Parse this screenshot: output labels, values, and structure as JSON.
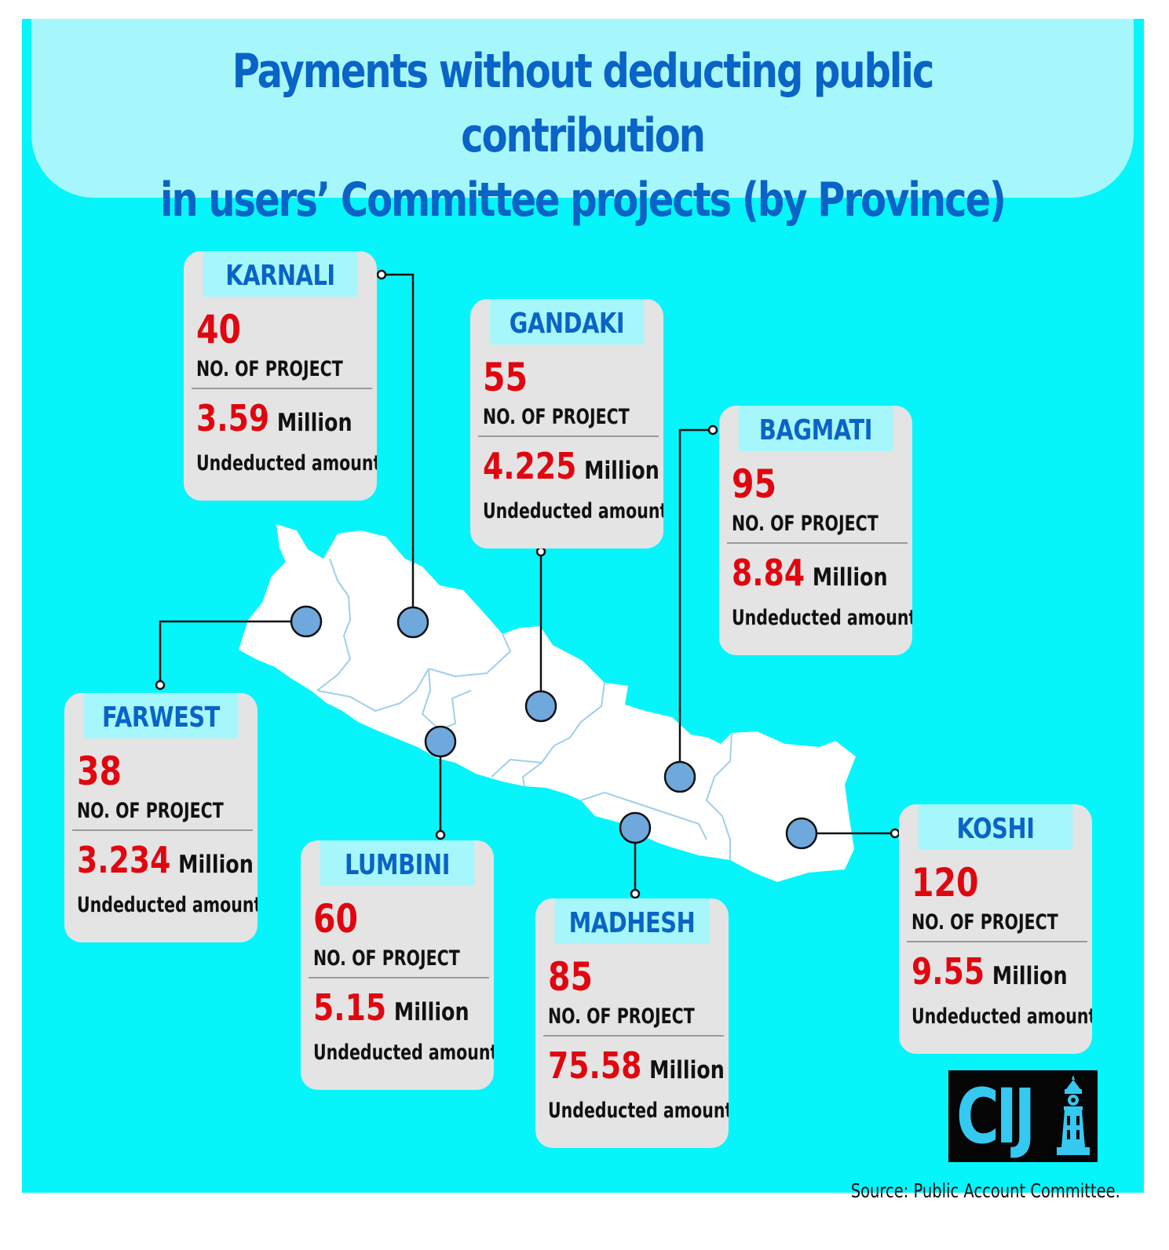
{
  "title": "Payments without deducting public contribution\nin users’ Committee projects (by Province)",
  "labels": {
    "count_label": "NO. OF PROJECT",
    "unit": "Million",
    "amount_label": "Undeducted amount"
  },
  "colors": {
    "background": "#05f5fb",
    "title_panel": "#a6f7fb",
    "title_text": "#0a63c6",
    "value_red": "#e0060f",
    "card": "#e4e4e4",
    "marker": "#6fa8dc",
    "map_land": "#ffffff"
  },
  "provinces": [
    {
      "name": "KARNALI",
      "projects": "40",
      "amount": "3.59"
    },
    {
      "name": "GANDAKI",
      "projects": "55",
      "amount": "4.225"
    },
    {
      "name": "BAGMATI",
      "projects": "95",
      "amount": "8.84"
    },
    {
      "name": "FARWEST",
      "projects": "38",
      "amount": "3.234"
    },
    {
      "name": "LUMBINI",
      "projects": "60",
      "amount": "5.15"
    },
    {
      "name": "MADHESH",
      "projects": "85",
      "amount": "75.58"
    },
    {
      "name": "KOSHI",
      "projects": "120",
      "amount": "9.55"
    }
  ],
  "logo": {
    "text": "CIJ"
  },
  "source": "Source: Public Account Committee."
}
